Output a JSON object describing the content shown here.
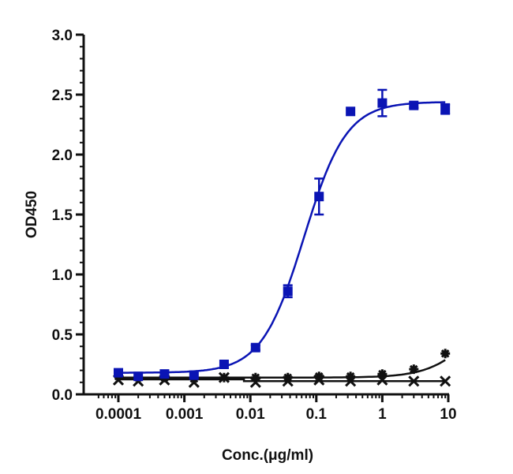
{
  "chart_data": {
    "type": "scatter",
    "title": "",
    "xlabel": "Conc.(μg/ml)",
    "ylabel": "OD450",
    "xscale": "log",
    "xlim": [
      5e-05,
      10
    ],
    "ylim": [
      0,
      3.0
    ],
    "x_ticks": [
      "0.0001",
      "0.001",
      "0.01",
      "0.1",
      "1",
      "10"
    ],
    "y_ticks": [
      "0.0",
      "0.5",
      "1.0",
      "1.5",
      "2.0",
      "2.5",
      "3.0"
    ],
    "grid": false,
    "legend": "none",
    "x": [
      0.0001,
      0.0002,
      0.0005,
      0.0014,
      0.004,
      0.012,
      0.037,
      0.11,
      0.33,
      1,
      3,
      9
    ],
    "series": [
      {
        "name": "Series 1 (blue squares)",
        "color": "#0a14b4",
        "marker": "square",
        "values": [
          0.18,
          0.15,
          0.17,
          0.16,
          0.25,
          0.39,
          0.86,
          1.65,
          2.36,
          2.43,
          2.41,
          2.38
        ],
        "errors": [
          0.02,
          0.01,
          0.01,
          0.01,
          0.01,
          0.02,
          0.05,
          0.15,
          0.01,
          0.11,
          0.02,
          0.04
        ],
        "fit": "4PL sigmoid",
        "fit_params": {
          "bottom": 0.18,
          "top": 2.44,
          "ec50": 0.065,
          "hill": 1.35
        }
      },
      {
        "name": "Series 2 (black asterisks)",
        "color": "#111111",
        "marker": "asterisk",
        "values": [
          0.15,
          0.14,
          0.14,
          0.13,
          0.14,
          0.14,
          0.14,
          0.15,
          0.15,
          0.17,
          0.21,
          0.34
        ]
      },
      {
        "name": "Series 3 (black crosses)",
        "color": "#111111",
        "marker": "x",
        "values": [
          0.12,
          0.11,
          0.12,
          0.1,
          0.14,
          0.1,
          0.11,
          0.12,
          0.11,
          0.12,
          0.11,
          0.11
        ]
      }
    ]
  }
}
